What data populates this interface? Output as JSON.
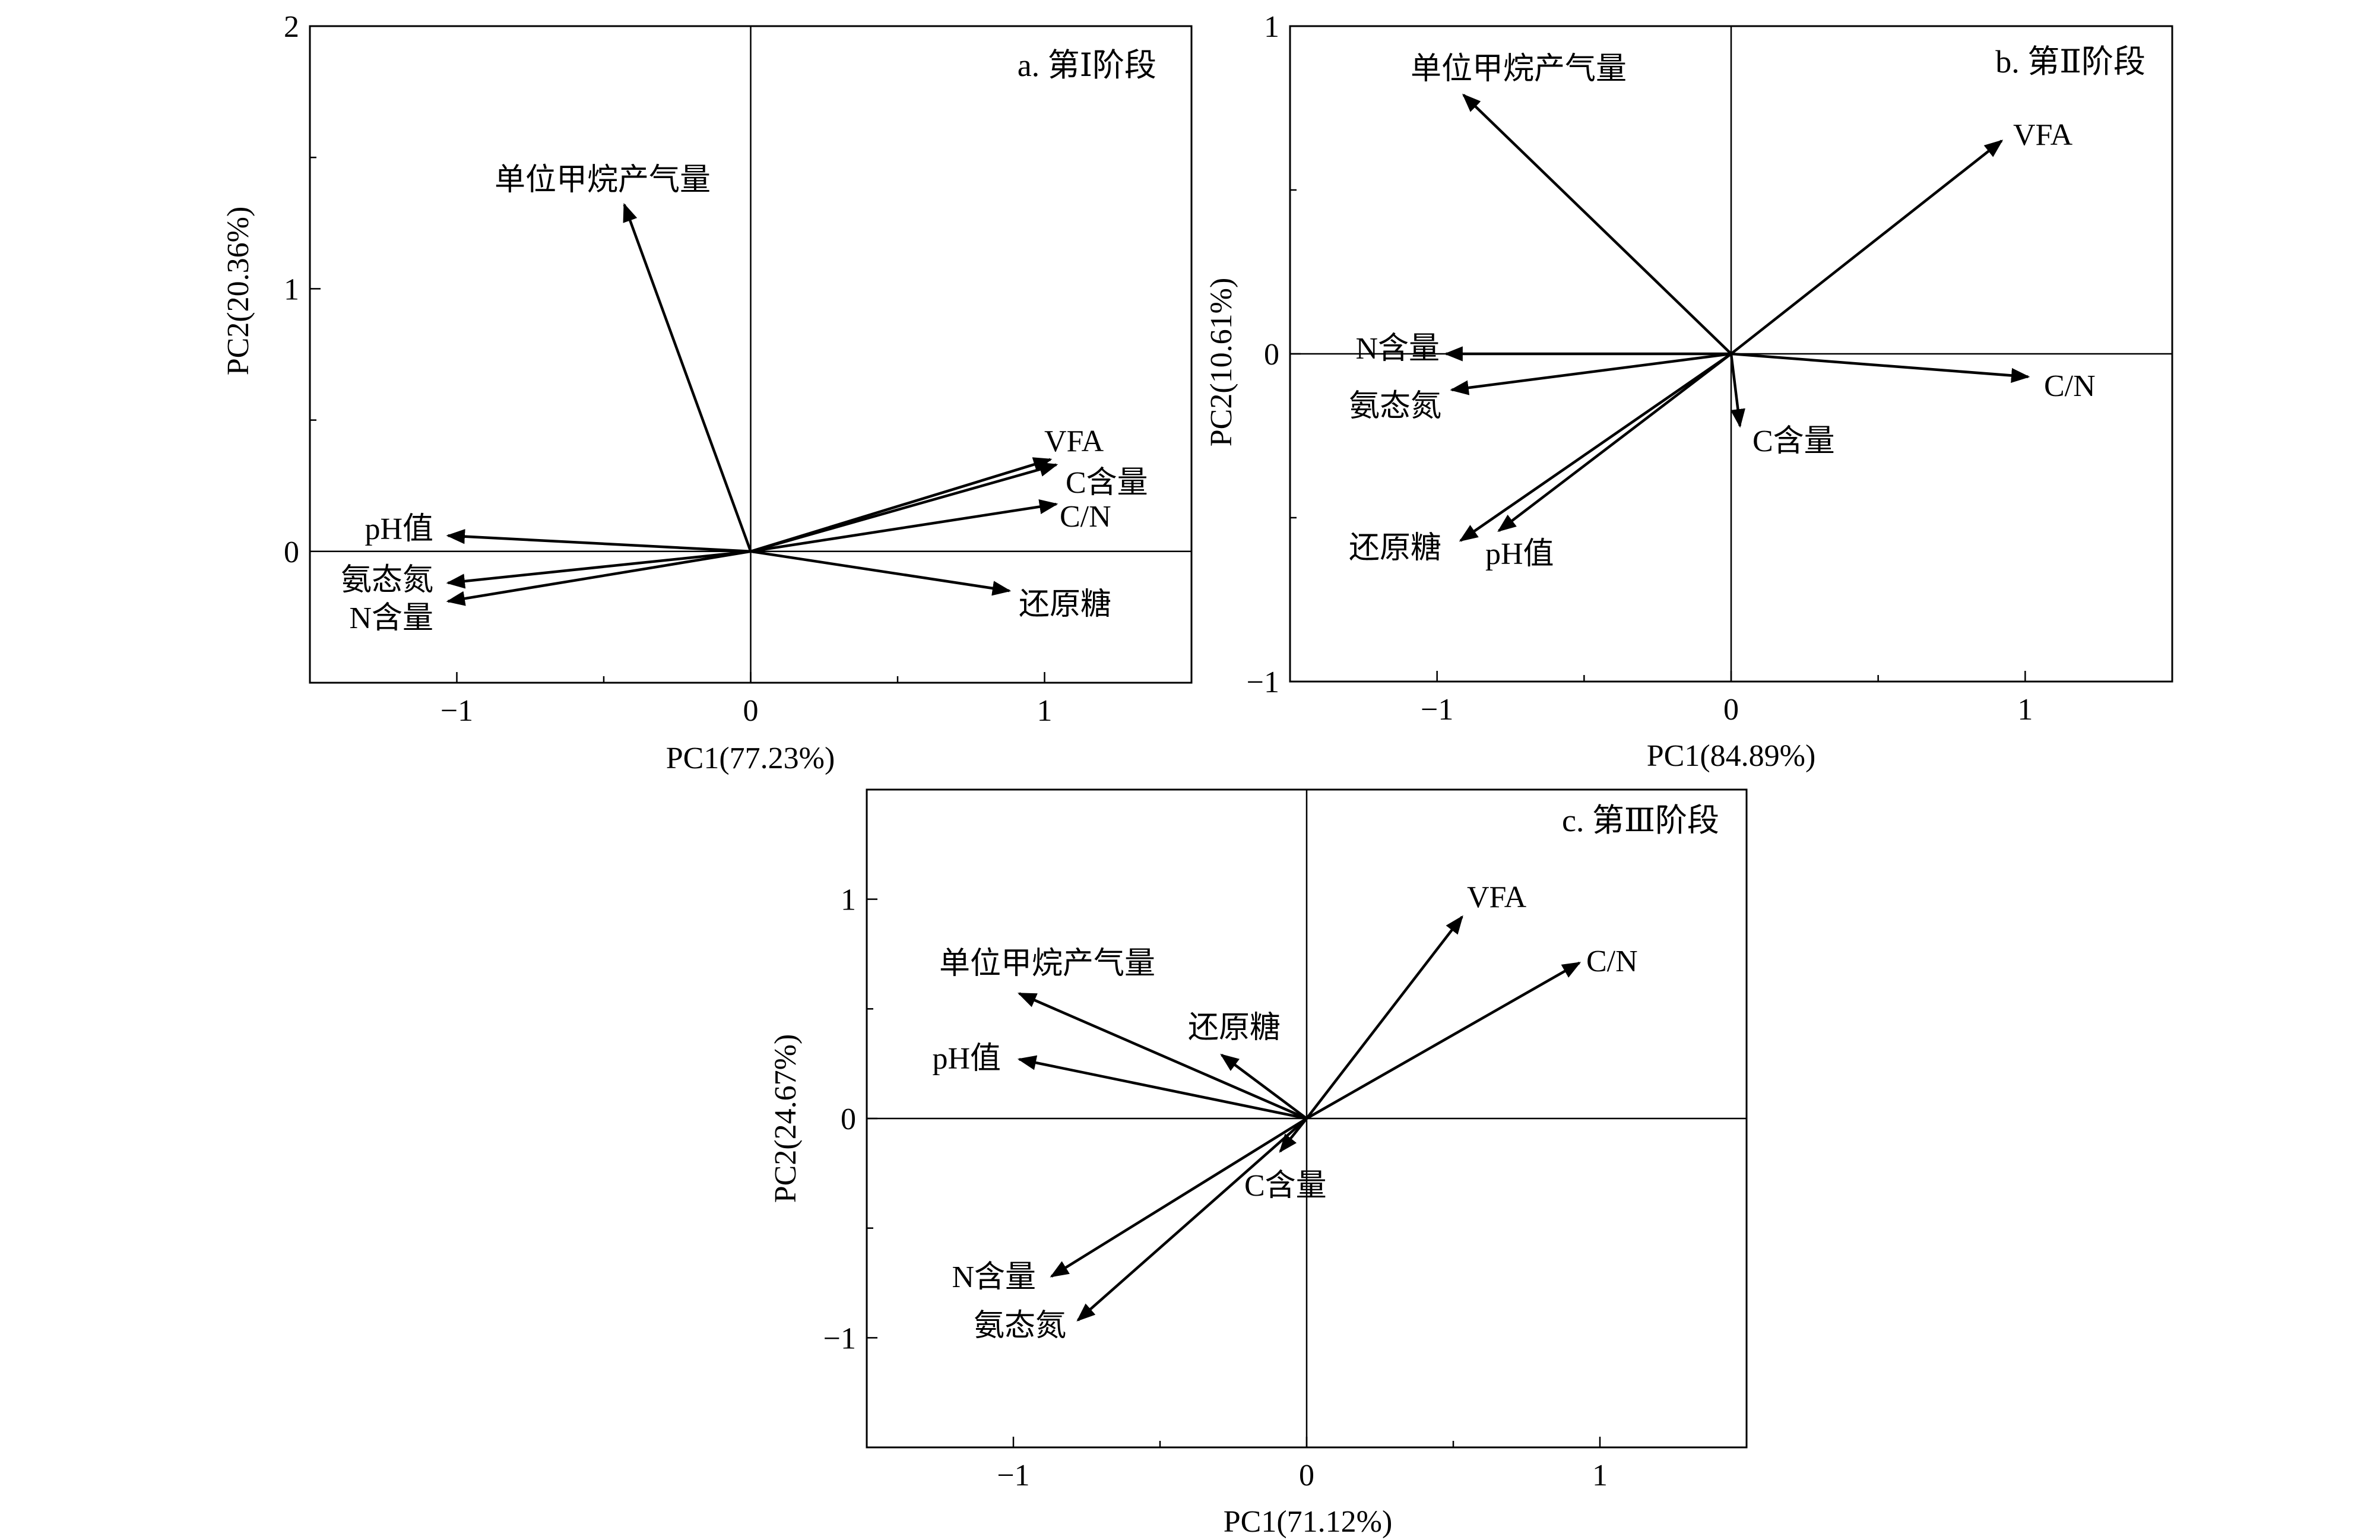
{
  "chart_data": [
    {
      "type": "biplot",
      "title": "a. 第Ⅰ阶段",
      "xlabel": "PC1(77.23%)",
      "ylabel": "PC2(20.36%)",
      "xlim": [
        -1.5,
        1.5
      ],
      "ylim": [
        -0.5,
        2.0
      ],
      "xticks": [
        -1,
        0,
        1
      ],
      "xtick_labels": [
        "−1",
        "0",
        "1"
      ],
      "yticks": [
        0,
        1,
        2
      ],
      "ytick_labels": [
        "0",
        "1",
        "2"
      ],
      "vectors": [
        {
          "name": "单位甲烷产气量",
          "x": -0.43,
          "y": 1.32
        },
        {
          "name": "VFA",
          "x": 1.02,
          "y": 0.35
        },
        {
          "name": "C含量",
          "x": 1.04,
          "y": 0.33
        },
        {
          "name": "C/N",
          "x": 1.04,
          "y": 0.18
        },
        {
          "name": "pH值",
          "x": -1.03,
          "y": 0.06
        },
        {
          "name": "氨态氮",
          "x": -1.03,
          "y": -0.12
        },
        {
          "name": "N含量",
          "x": -1.03,
          "y": -0.19
        },
        {
          "name": "还原糖",
          "x": 0.88,
          "y": -0.15
        }
      ]
    },
    {
      "type": "biplot",
      "title": "b. 第Ⅱ阶段",
      "xlabel": "PC1(84.89%)",
      "ylabel": "PC2(10.61%)",
      "xlim": [
        -1.5,
        1.5
      ],
      "ylim": [
        -1.0,
        1.0
      ],
      "xticks": [
        -1,
        0,
        1
      ],
      "xtick_labels": [
        "−1",
        "0",
        "1"
      ],
      "yticks": [
        -1,
        0,
        1
      ],
      "ytick_labels": [
        "−1",
        "0",
        "1"
      ],
      "vectors": [
        {
          "name": "单位甲烷产气量",
          "x": -0.91,
          "y": 0.79
        },
        {
          "name": "VFA",
          "x": 0.92,
          "y": 0.65
        },
        {
          "name": "N含量",
          "x": -0.97,
          "y": 0.0
        },
        {
          "name": "C/N",
          "x": 1.01,
          "y": -0.07
        },
        {
          "name": "氨态氮",
          "x": -0.95,
          "y": -0.11
        },
        {
          "name": "C含量",
          "x": 0.03,
          "y": -0.22
        },
        {
          "name": "还原糖",
          "x": -0.92,
          "y": -0.57
        },
        {
          "name": "pH值",
          "x": -0.79,
          "y": -0.54
        }
      ]
    },
    {
      "type": "biplot",
      "title": "c. 第Ⅲ阶段",
      "xlabel": "PC1(71.12%)",
      "ylabel": "PC2(24.67%)",
      "xlim": [
        -1.5,
        1.5
      ],
      "ylim": [
        -1.5,
        1.5
      ],
      "xticks": [
        -1,
        0,
        1
      ],
      "xtick_labels": [
        "−1",
        "0",
        "1"
      ],
      "yticks": [
        -1,
        0,
        1
      ],
      "ytick_labels": [
        "−1",
        "0",
        "1"
      ],
      "vectors": [
        {
          "name": "单位甲烷产气量",
          "x": -0.98,
          "y": 0.57
        },
        {
          "name": "VFA",
          "x": 0.53,
          "y": 0.92
        },
        {
          "name": "C/N",
          "x": 0.93,
          "y": 0.71
        },
        {
          "name": "pH值",
          "x": -0.98,
          "y": 0.27
        },
        {
          "name": "还原糖",
          "x": -0.29,
          "y": 0.29
        },
        {
          "name": "C含量",
          "x": -0.09,
          "y": -0.15
        },
        {
          "name": "N含量",
          "x": -0.87,
          "y": -0.72
        },
        {
          "name": "氨态氮",
          "x": -0.78,
          "y": -0.92
        }
      ]
    }
  ]
}
